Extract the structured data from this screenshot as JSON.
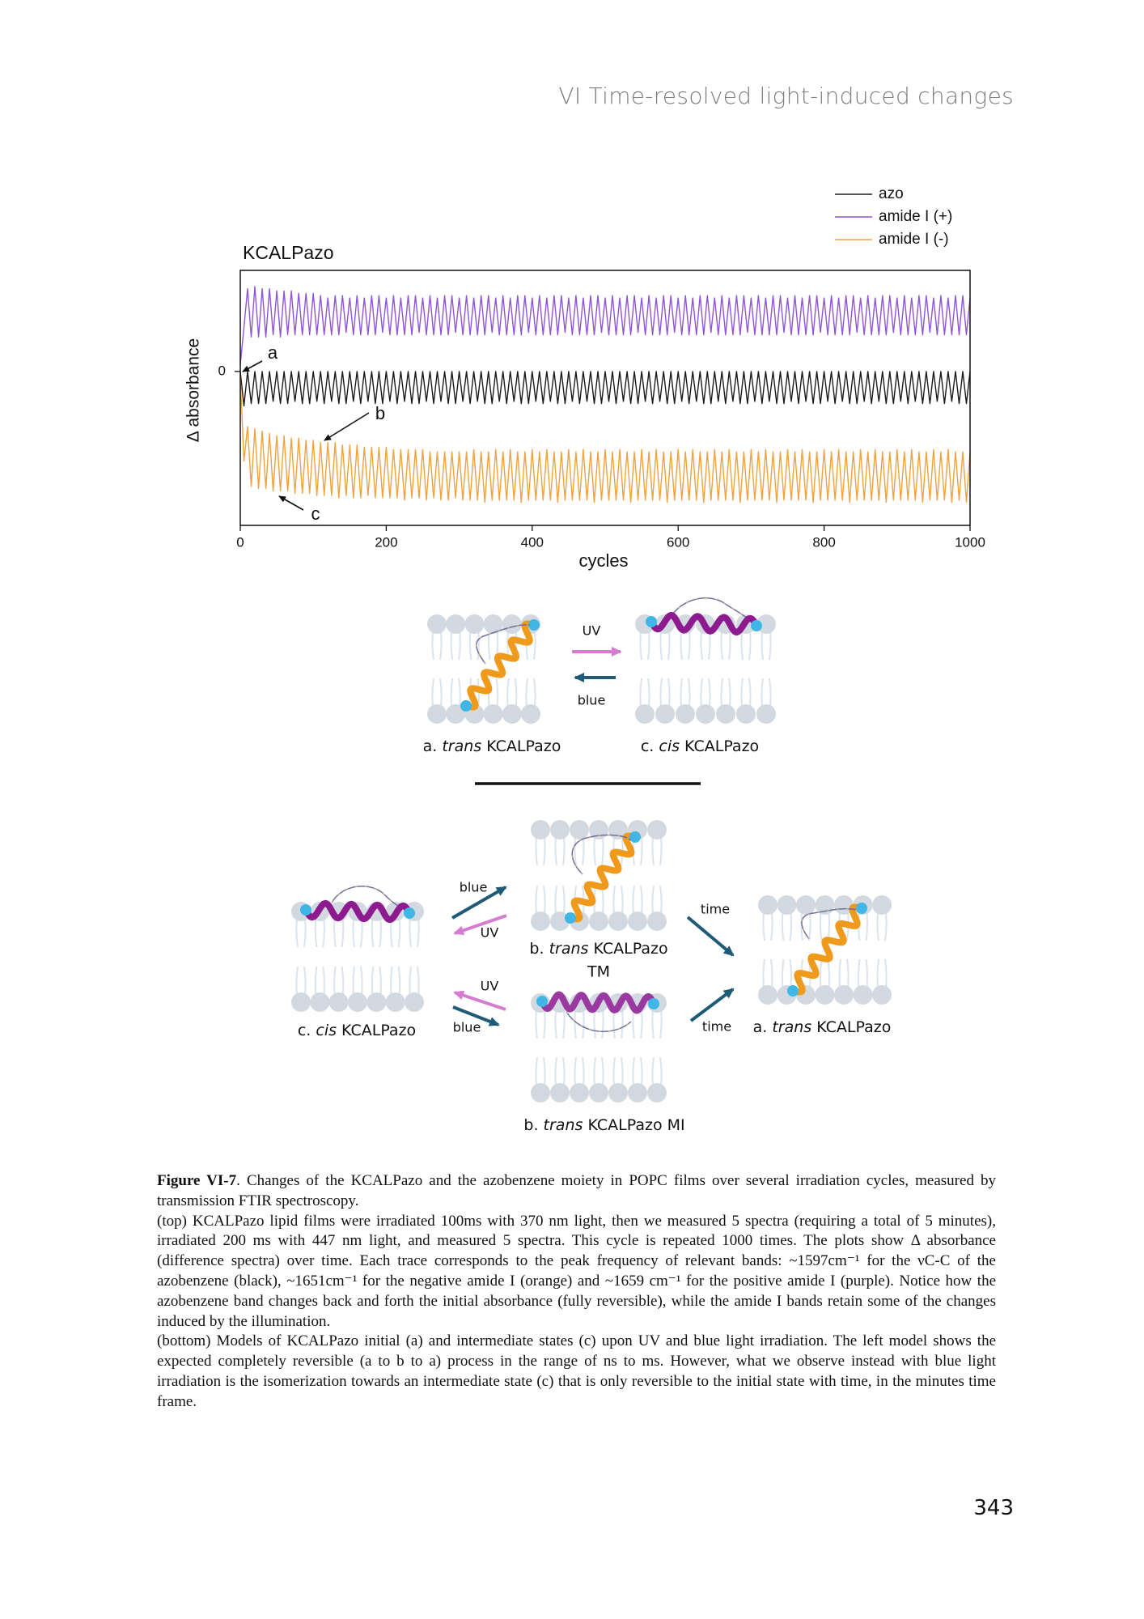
{
  "header": {
    "running_title": "VI Time-resolved light-induced changes"
  },
  "chart_data": {
    "type": "line",
    "title": "KCALPazo",
    "xlabel": "cycles",
    "ylabel": "Δ absorbance",
    "x": [
      0,
      5,
      10,
      15,
      20,
      25,
      30,
      35,
      40,
      45,
      50,
      55,
      60,
      65,
      70,
      75,
      80,
      85,
      90,
      95,
      100,
      105,
      110,
      115,
      120,
      125,
      130,
      135,
      140,
      145,
      150,
      155,
      160,
      165,
      170,
      175,
      180,
      185,
      190,
      195,
      200,
      205,
      210,
      215,
      220,
      225,
      230,
      235,
      240,
      245,
      250,
      255,
      260,
      265,
      270,
      275,
      280,
      285,
      290,
      295,
      300,
      305,
      310,
      315,
      320,
      325,
      330,
      335,
      340,
      345,
      350,
      355,
      360,
      365,
      370,
      375,
      380,
      385,
      390,
      395,
      400,
      405,
      410,
      415,
      420,
      425,
      430,
      435,
      440,
      445,
      450,
      455,
      460,
      465,
      470,
      475,
      480,
      485,
      490,
      495,
      500,
      505,
      510,
      515,
      520,
      525,
      530,
      535,
      540,
      545,
      550,
      555,
      560,
      565,
      570,
      575,
      580,
      585,
      590,
      595,
      600,
      605,
      610,
      615,
      620,
      625,
      630,
      635,
      640,
      645,
      650,
      655,
      660,
      665,
      670,
      675,
      680,
      685,
      690,
      695,
      700,
      705,
      710,
      715,
      720,
      725,
      730,
      735,
      740,
      745,
      750,
      755,
      760,
      765,
      770,
      775,
      780,
      785,
      790,
      795,
      800,
      805,
      810,
      815,
      820,
      825,
      830,
      835,
      840,
      845,
      850,
      855,
      860,
      865,
      870,
      875,
      880,
      885,
      890,
      895,
      900,
      905,
      910,
      915,
      920,
      925,
      930,
      935,
      940,
      945,
      950,
      955,
      960,
      965,
      970,
      975,
      980,
      985,
      990,
      995,
      1000
    ],
    "series": [
      {
        "name": "azo",
        "color": "#1a1a1a",
        "values": [
          0,
          -1.5,
          0,
          -1.4,
          0,
          -1.4,
          0,
          -1.4,
          0,
          -1.3,
          0,
          -1.4,
          0,
          -1.4,
          0,
          -1.3,
          0,
          -1.4,
          0,
          -1.4,
          0,
          -1.3,
          0,
          -1.4,
          0,
          -1.3,
          0,
          -1.4,
          0,
          -1.4,
          0,
          -1.3,
          0,
          -1.4,
          0,
          -1.3,
          0,
          -1.4,
          0,
          -1.4,
          0,
          -1.3,
          0,
          -1.4,
          0,
          -1.3,
          0,
          -1.4,
          0,
          -1.4,
          0,
          -1.3,
          0,
          -1.4,
          0,
          -1.3,
          0,
          -1.4,
          0,
          -1.4,
          0,
          -1.3,
          0,
          -1.4,
          0,
          -1.3,
          0,
          -1.4,
          0,
          -1.4,
          0,
          -1.3,
          0,
          -1.4,
          0,
          -1.3,
          0,
          -1.4,
          0,
          -1.4,
          0,
          -1.3,
          0,
          -1.4,
          0,
          -1.3,
          0,
          -1.4,
          0,
          -1.4,
          0,
          -1.3,
          0,
          -1.4,
          0,
          -1.3,
          0,
          -1.4,
          0,
          -1.4,
          0,
          -1.3,
          0,
          -1.4,
          0,
          -1.3,
          0,
          -1.4,
          0,
          -1.4,
          0,
          -1.3,
          0,
          -1.4,
          0,
          -1.3,
          0,
          -1.4,
          0,
          -1.4,
          0,
          -1.3,
          0,
          -1.4,
          0,
          -1.3,
          0,
          -1.4,
          0,
          -1.4,
          0,
          -1.3,
          0,
          -1.4,
          0,
          -1.3,
          0,
          -1.4,
          0,
          -1.4,
          0,
          -1.3,
          0,
          -1.4,
          0,
          -1.3,
          0,
          -1.4,
          0,
          -1.4,
          0,
          -1.3,
          0,
          -1.4,
          0,
          -1.3,
          0,
          -1.4,
          0,
          -1.4,
          0,
          -1.3,
          0,
          -1.4,
          0,
          -1.3,
          0,
          -1.4,
          0,
          -1.4,
          0,
          -1.3,
          0,
          -1.4,
          0,
          -1.3,
          0,
          -1.4,
          0,
          -1.4,
          0,
          -1.3,
          0,
          -1.4,
          0,
          -1.3,
          0,
          -1.4,
          0,
          -1.4,
          0,
          -1.3,
          0,
          -1.4,
          0,
          -1.3,
          0,
          -1.4,
          0,
          -1.4,
          0
        ]
      },
      {
        "name": "amide I (+)",
        "color": "#8f55d8",
        "values": [
          0.3,
          1.9,
          3.6,
          1.5,
          3.7,
          1.5,
          3.6,
          1.5,
          3.6,
          1.6,
          3.5,
          1.5,
          3.5,
          1.6,
          3.5,
          1.6,
          3.4,
          1.6,
          3.4,
          1.6,
          3.4,
          1.6,
          3.3,
          1.6,
          3.2,
          1.6,
          3.3,
          1.6,
          3.3,
          1.7,
          3.2,
          1.6,
          3.3,
          1.6,
          3.2,
          1.6,
          3.3,
          1.6,
          3.3,
          1.7,
          3.2,
          1.6,
          3.3,
          1.6,
          3.2,
          1.6,
          3.3,
          1.6,
          3.3,
          1.7,
          3.2,
          1.6,
          3.3,
          1.6,
          3.2,
          1.6,
          3.3,
          1.6,
          3.3,
          1.7,
          3.2,
          1.6,
          3.3,
          1.6,
          3.2,
          1.6,
          3.3,
          1.6,
          3.3,
          1.7,
          3.2,
          1.6,
          3.3,
          1.6,
          3.2,
          1.6,
          3.3,
          1.6,
          3.3,
          1.7,
          3.2,
          1.6,
          3.3,
          1.6,
          3.2,
          1.6,
          3.3,
          1.6,
          3.3,
          1.7,
          3.2,
          1.6,
          3.3,
          1.6,
          3.2,
          1.6,
          3.3,
          1.6,
          3.3,
          1.7,
          3.2,
          1.6,
          3.3,
          1.6,
          3.2,
          1.6,
          3.3,
          1.6,
          3.3,
          1.7,
          3.2,
          1.6,
          3.3,
          1.6,
          3.2,
          1.6,
          3.3,
          1.6,
          3.3,
          1.7,
          3.2,
          1.6,
          3.3,
          1.6,
          3.2,
          1.6,
          3.3,
          1.6,
          3.3,
          1.7,
          3.2,
          1.6,
          3.3,
          1.6,
          3.2,
          1.6,
          3.3,
          1.6,
          3.3,
          1.7,
          3.2,
          1.6,
          3.3,
          1.6,
          3.2,
          1.6,
          3.3,
          1.6,
          3.3,
          1.7,
          3.2,
          1.6,
          3.3,
          1.6,
          3.2,
          1.6,
          3.3,
          1.6,
          3.3,
          1.7,
          3.2,
          1.6,
          3.3,
          1.6,
          3.2,
          1.6,
          3.3,
          1.6,
          3.3,
          1.7,
          3.2,
          1.6,
          3.3,
          1.6,
          3.2,
          1.6,
          3.3,
          1.6,
          3.3,
          1.7,
          3.2,
          1.6,
          3.3,
          1.6,
          3.2,
          1.6,
          3.3,
          1.6,
          3.3,
          1.7,
          3.2,
          1.6,
          3.3,
          1.6,
          3.2,
          1.6,
          3.3,
          1.6,
          3.3,
          1.6,
          3.2
        ]
      },
      {
        "name": "amide I (-)",
        "color": "#f0a23c",
        "values": [
          -0.2,
          -3.9,
          -2.4,
          -5.0,
          -2.5,
          -5.1,
          -2.6,
          -5.1,
          -2.7,
          -5.2,
          -2.8,
          -5.2,
          -2.8,
          -5.2,
          -2.9,
          -5.3,
          -2.9,
          -5.3,
          -3.0,
          -5.3,
          -3.0,
          -5.4,
          -3.1,
          -5.4,
          -3.1,
          -5.4,
          -3.1,
          -5.5,
          -3.2,
          -5.4,
          -3.2,
          -5.5,
          -3.2,
          -5.5,
          -3.3,
          -5.4,
          -3.3,
          -5.5,
          -3.3,
          -5.5,
          -3.3,
          -5.5,
          -3.4,
          -5.5,
          -3.4,
          -5.6,
          -3.4,
          -5.5,
          -3.4,
          -5.5,
          -3.4,
          -5.6,
          -3.5,
          -5.5,
          -3.5,
          -5.6,
          -3.5,
          -5.6,
          -3.5,
          -5.5,
          -3.5,
          -5.6,
          -3.5,
          -5.6,
          -3.4,
          -5.6,
          -3.5,
          -5.7,
          -3.5,
          -5.6,
          -3.4,
          -5.6,
          -3.5,
          -5.6,
          -3.4,
          -5.6,
          -3.5,
          -5.7,
          -3.5,
          -5.6,
          -3.4,
          -5.6,
          -3.5,
          -5.6,
          -3.4,
          -5.6,
          -3.5,
          -5.7,
          -3.5,
          -5.6,
          -3.4,
          -5.6,
          -3.5,
          -5.6,
          -3.4,
          -5.6,
          -3.5,
          -5.7,
          -3.5,
          -5.6,
          -3.4,
          -5.6,
          -3.5,
          -5.6,
          -3.4,
          -5.6,
          -3.5,
          -5.7,
          -3.5,
          -5.6,
          -3.4,
          -5.6,
          -3.5,
          -5.6,
          -3.4,
          -5.6,
          -3.5,
          -5.7,
          -3.5,
          -5.6,
          -3.4,
          -5.6,
          -3.5,
          -5.6,
          -3.4,
          -5.6,
          -3.5,
          -5.7,
          -3.5,
          -5.6,
          -3.4,
          -5.6,
          -3.5,
          -5.6,
          -3.4,
          -5.6,
          -3.5,
          -5.7,
          -3.5,
          -5.6,
          -3.4,
          -5.6,
          -3.5,
          -5.6,
          -3.4,
          -5.6,
          -3.5,
          -5.7,
          -3.5,
          -5.6,
          -3.4,
          -5.6,
          -3.5,
          -5.6,
          -3.4,
          -5.6,
          -3.5,
          -5.7,
          -3.5,
          -5.6,
          -3.4,
          -5.6,
          -3.5,
          -5.6,
          -3.4,
          -5.6,
          -3.5,
          -5.7,
          -3.5,
          -5.6,
          -3.4,
          -5.6,
          -3.5,
          -5.6,
          -3.4,
          -5.6,
          -3.5,
          -5.7,
          -3.5,
          -5.6,
          -3.4,
          -5.6,
          -3.5,
          -5.6,
          -3.4,
          -5.6,
          -3.5,
          -5.7,
          -3.5,
          -5.6,
          -3.4,
          -5.6,
          -3.5,
          -5.6,
          -3.4,
          -5.7,
          -3.5,
          -5.6,
          -3.5,
          -5.7,
          -3.5
        ]
      }
    ],
    "xlim": [
      0,
      1000
    ],
    "xticks": [
      0,
      200,
      400,
      600,
      800,
      1000
    ],
    "ylim": [
      -6.7,
      4.4
    ],
    "yticks": [
      0
    ],
    "legend": "top right",
    "annotations": [
      "a",
      "b",
      "c"
    ]
  },
  "diagram_top": {
    "arrow_labels": [
      "UV",
      "blue"
    ],
    "states": [
      {
        "prefix": "a.",
        "italic": "trans",
        "name": "KCALPazo"
      },
      {
        "prefix": "c.",
        "italic": "cis",
        "name": "KCALPazo"
      }
    ]
  },
  "diagram_bottom": {
    "arrow_labels": [
      "blue",
      "UV",
      "UV",
      "blue",
      "time",
      "time"
    ],
    "states": [
      {
        "prefix": "c.",
        "italic": "cis",
        "name": "KCALPazo"
      },
      {
        "prefix": "b.",
        "italic": "trans",
        "name": "KCALPazo",
        "suffix": "TM"
      },
      {
        "prefix": "b.",
        "italic": "trans",
        "name": "KCALPazo MI"
      },
      {
        "prefix": "a.",
        "italic": "trans",
        "name": "KCALPazo"
      }
    ]
  },
  "caption": {
    "label": "Figure VI-7",
    "intro": ". Changes of the KCALPazo and the azobenzene moiety in POPC films over several irradiation cycles, measured by transmission FTIR spectroscopy.",
    "paragraphs": [
      "(top) KCALPazo lipid films were irradiated 100ms with 370 nm light, then we measured 5 spectra (requiring a total of 5 minutes), irradiated 200 ms with 447 nm light, and measured 5 spectra. This cycle is repeated 1000 times. The plots show Δ absorbance (difference spectra) over time. Each trace corresponds to the peak frequency of relevant bands: ~1597cm⁻¹ for the νC-C of the azobenzene (black), ~1651cm⁻¹ for the negative amide I (orange) and ~1659 cm⁻¹ for the positive amide I (purple). Notice how the azobenzene band changes back and forth the initial absorbance (fully reversible), while the amide I bands retain some of the changes induced by the illumination.",
      "(bottom) Models of KCALPazo initial (a) and intermediate states (c) upon UV and blue light irradiation. The left model shows the expected completely reversible (a to b to a) process in the range of ns to ms. However, what we observe instead with blue light irradiation is the isomerization towards an intermediate state (c) that is only reversible to the initial state with time, in the minutes time frame."
    ]
  },
  "page_number": "343"
}
